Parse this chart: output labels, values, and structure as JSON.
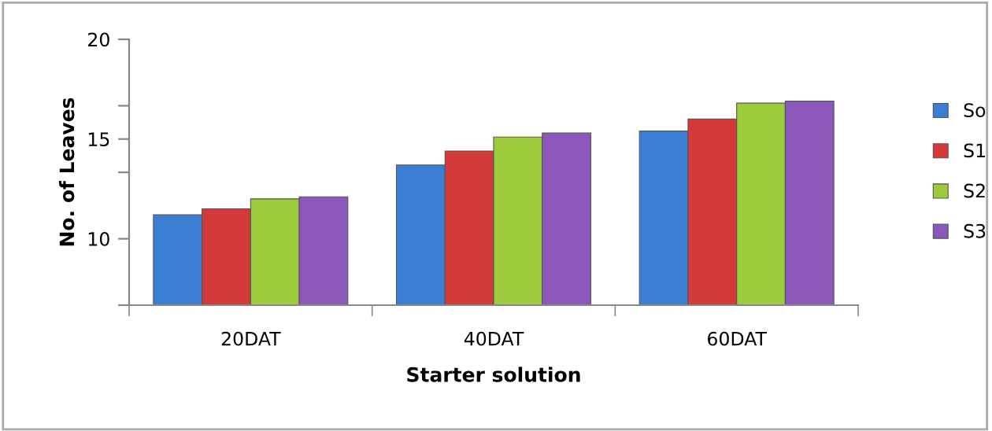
{
  "chart_data": {
    "type": "bar",
    "xlabel": "Starter solution",
    "ylabel": "No. of Leaves",
    "categories": [
      "20DAT",
      "40DAT",
      "60DAT"
    ],
    "series": [
      {
        "name": "So",
        "color": "#3b7fd4",
        "values": [
          11.2,
          13.7,
          15.4
        ]
      },
      {
        "name": "S1",
        "color": "#d43a3a",
        "values": [
          11.5,
          14.4,
          16.0
        ]
      },
      {
        "name": "S2",
        "color": "#9ccb3b",
        "values": [
          12.0,
          15.1,
          16.8
        ]
      },
      {
        "name": "S3",
        "color": "#8b57bb",
        "values": [
          12.1,
          15.3,
          16.9
        ]
      }
    ],
    "ylim": [
      6.67,
      20
    ],
    "yticks": [
      {
        "value": 6.67,
        "label": null
      },
      10,
      {
        "value": 13.33,
        "label": null
      },
      15,
      {
        "value": 16.67,
        "label": null
      },
      20
    ],
    "grid": false,
    "legend": "right"
  }
}
